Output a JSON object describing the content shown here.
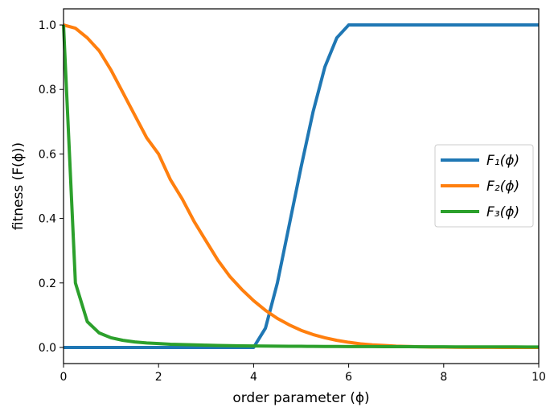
{
  "chart_data": {
    "type": "line",
    "xlabel": "order parameter (ϕ)",
    "ylabel": "fitness (F(ϕ))",
    "xlim": [
      0,
      10
    ],
    "ylim": [
      -0.05,
      1.05
    ],
    "xticks": [
      0,
      2,
      4,
      6,
      8,
      10
    ],
    "yticks": [
      0.0,
      0.2,
      0.4,
      0.6,
      0.8,
      1.0
    ],
    "xtick_labels": [
      "0",
      "2",
      "4",
      "6",
      "8",
      "10"
    ],
    "ytick_labels": [
      "0.0",
      "0.2",
      "0.4",
      "0.6",
      "0.8",
      "1.0"
    ],
    "grid": false,
    "legend_position": "center-right",
    "x": [
      0,
      0.25,
      0.5,
      0.75,
      1,
      1.25,
      1.5,
      1.75,
      2,
      2.25,
      2.5,
      2.75,
      3,
      3.25,
      3.5,
      3.75,
      4,
      4.25,
      4.5,
      4.75,
      5,
      5.25,
      5.5,
      5.75,
      6,
      6.25,
      6.5,
      6.75,
      7,
      7.25,
      7.5,
      7.75,
      8,
      8.25,
      8.5,
      8.75,
      9,
      9.25,
      9.5,
      9.75,
      10
    ],
    "series": [
      {
        "name": "F₁(ϕ)",
        "color": "#1f77b4",
        "values": [
          0,
          0,
          0,
          0,
          0,
          0,
          0,
          0,
          0,
          0,
          0,
          0,
          0,
          0,
          0,
          0,
          0,
          0.06,
          0.2,
          0.38,
          0.56,
          0.73,
          0.87,
          0.96,
          1,
          1,
          1,
          1,
          1,
          1,
          1,
          1,
          1,
          1,
          1,
          1,
          1,
          1,
          1,
          1,
          1
        ]
      },
      {
        "name": "F₂(ϕ)",
        "color": "#ff7f0e",
        "values": [
          1,
          0.99,
          0.96,
          0.92,
          0.86,
          0.79,
          0.72,
          0.65,
          0.6,
          0.52,
          0.46,
          0.39,
          0.33,
          0.27,
          0.22,
          0.18,
          0.145,
          0.115,
          0.09,
          0.07,
          0.053,
          0.04,
          0.03,
          0.022,
          0.016,
          0.011,
          0.008,
          0.006,
          0.004,
          0.003,
          0.002,
          0.001,
          0.001,
          0.0005,
          0.0003,
          0.0002,
          0.0001,
          0,
          0,
          0,
          0
        ]
      },
      {
        "name": "F₃(ϕ)",
        "color": "#2ca02c",
        "values": [
          1,
          0.2,
          0.08,
          0.045,
          0.03,
          0.022,
          0.017,
          0.014,
          0.012,
          0.01,
          0.009,
          0.008,
          0.007,
          0.006,
          0.0055,
          0.005,
          0.0045,
          0.0042,
          0.004,
          0.0037,
          0.0035,
          0.0033,
          0.0031,
          0.003,
          0.0028,
          0.0027,
          0.0026,
          0.0025,
          0.0024,
          0.0023,
          0.0022,
          0.0021,
          0.002,
          0.0019,
          0.0018,
          0.0018,
          0.0017,
          0.0016,
          0.0016,
          0.0015,
          0.0015
        ]
      }
    ]
  }
}
